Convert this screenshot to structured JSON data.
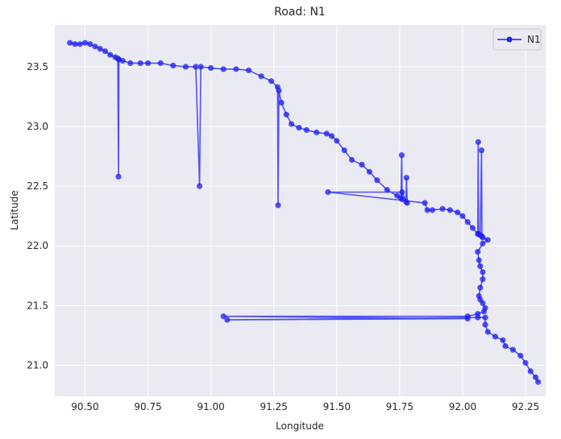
{
  "chart_data": {
    "type": "line",
    "title": "Road: N1",
    "xlabel": "Longitude",
    "ylabel": "Latitude",
    "xlim": [
      90.38,
      92.33
    ],
    "ylim": [
      20.74,
      23.85
    ],
    "xticks": [
      90.5,
      90.75,
      91.0,
      91.25,
      91.5,
      91.75,
      92.0,
      92.25
    ],
    "xtick_labels": [
      "90.50",
      "90.75",
      "91.00",
      "91.25",
      "91.50",
      "91.75",
      "92.00",
      "92.25"
    ],
    "yticks": [
      21.0,
      21.5,
      22.0,
      22.5,
      23.0,
      23.5
    ],
    "ytick_labels": [
      "21.0",
      "21.5",
      "22.0",
      "22.5",
      "23.0",
      "23.5"
    ],
    "grid": true,
    "legend_position": "top-right",
    "colors": {
      "series": "#1f1ff0",
      "plot_bg": "#eaeaf2",
      "grid": "#ffffff"
    },
    "series": [
      {
        "name": "N1",
        "x": [
          90.44,
          90.46,
          90.48,
          90.5,
          90.52,
          90.54,
          90.56,
          90.58,
          90.6,
          90.62,
          90.63,
          90.633,
          90.635,
          90.65,
          90.68,
          90.72,
          90.75,
          90.8,
          90.85,
          90.9,
          90.94,
          90.955,
          90.96,
          91.0,
          91.05,
          91.1,
          91.15,
          91.2,
          91.24,
          91.265,
          91.267,
          91.27,
          91.28,
          91.3,
          91.32,
          91.35,
          91.38,
          91.42,
          91.46,
          91.48,
          91.5,
          91.53,
          91.56,
          91.6,
          91.63,
          91.66,
          91.7,
          91.74,
          91.755,
          91.758,
          91.76,
          91.775,
          91.777,
          91.78,
          91.76,
          91.465,
          91.85,
          91.86,
          91.88,
          91.92,
          91.95,
          91.98,
          92.0,
          92.02,
          92.04,
          92.06,
          92.062,
          92.064,
          92.07,
          92.075,
          92.077,
          92.08,
          92.1,
          92.08,
          92.06,
          92.065,
          92.07,
          92.08,
          92.08,
          92.07,
          92.065,
          92.07,
          92.08,
          92.09,
          92.085,
          92.06,
          92.02,
          91.05,
          92.02,
          91.065,
          92.06,
          92.09,
          92.09,
          92.1,
          92.13,
          92.16,
          92.17,
          92.2,
          92.23,
          92.25,
          92.27,
          92.29,
          92.3
        ],
        "y": [
          23.7,
          23.69,
          23.69,
          23.7,
          23.69,
          23.67,
          23.65,
          23.63,
          23.6,
          23.58,
          23.57,
          22.58,
          23.56,
          23.55,
          23.53,
          23.53,
          23.53,
          23.53,
          23.51,
          23.5,
          23.5,
          22.5,
          23.5,
          23.49,
          23.48,
          23.48,
          23.47,
          23.42,
          23.38,
          23.33,
          22.34,
          23.3,
          23.2,
          23.1,
          23.02,
          22.99,
          22.97,
          22.95,
          22.94,
          22.92,
          22.88,
          22.8,
          22.72,
          22.68,
          22.62,
          22.55,
          22.47,
          22.42,
          22.4,
          22.76,
          22.39,
          22.37,
          22.57,
          22.36,
          22.45,
          22.45,
          22.36,
          22.3,
          22.3,
          22.31,
          22.3,
          22.28,
          22.25,
          22.2,
          22.15,
          22.1,
          22.87,
          22.1,
          22.09,
          22.8,
          22.08,
          22.07,
          22.05,
          22.02,
          21.95,
          21.88,
          21.83,
          21.78,
          21.72,
          21.65,
          21.58,
          21.55,
          21.52,
          21.48,
          21.45,
          21.43,
          21.41,
          21.41,
          21.39,
          21.38,
          21.4,
          21.4,
          21.34,
          21.28,
          21.24,
          21.21,
          21.16,
          21.13,
          21.08,
          21.02,
          20.95,
          20.9,
          20.86
        ]
      }
    ]
  }
}
